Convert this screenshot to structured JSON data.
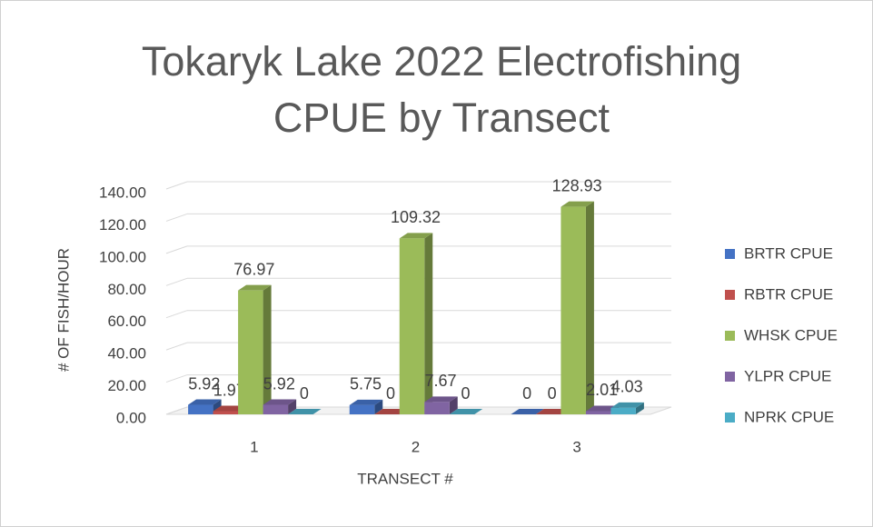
{
  "chart_data": {
    "type": "bar",
    "title": "Tokaryk Lake 2022 Electrofishing CPUE by Transect",
    "x_label": "TRANSECT #",
    "y_label": "# OF FISH/HOUR",
    "categories": [
      "1",
      "2",
      "3"
    ],
    "series": [
      {
        "name": "BRTR CPUE",
        "color": "#4472c4",
        "values": [
          5.92,
          5.75,
          0
        ]
      },
      {
        "name": "RBTR CPUE",
        "color": "#c0504d",
        "values": [
          1.97,
          0,
          0
        ]
      },
      {
        "name": "WHSK CPUE",
        "color": "#9bbb59",
        "values": [
          76.97,
          109.32,
          128.93
        ]
      },
      {
        "name": "YLPR CPUE",
        "color": "#8064a2",
        "values": [
          5.92,
          7.67,
          2.01
        ]
      },
      {
        "name": "NPRK CPUE",
        "color": "#4bacc6",
        "values": [
          0,
          0,
          4.03
        ]
      }
    ],
    "ylim": [
      0,
      140
    ],
    "yticks": [
      {
        "value": 0,
        "label": "0.00"
      },
      {
        "value": 20,
        "label": "20.00"
      },
      {
        "value": 40,
        "label": "40.00"
      },
      {
        "value": 60,
        "label": "60.00"
      },
      {
        "value": 80,
        "label": "80.00"
      },
      {
        "value": 100,
        "label": "100.00"
      },
      {
        "value": 120,
        "label": "120.00"
      },
      {
        "value": 140,
        "label": "140.00"
      }
    ],
    "grid": true,
    "legend": "right"
  }
}
